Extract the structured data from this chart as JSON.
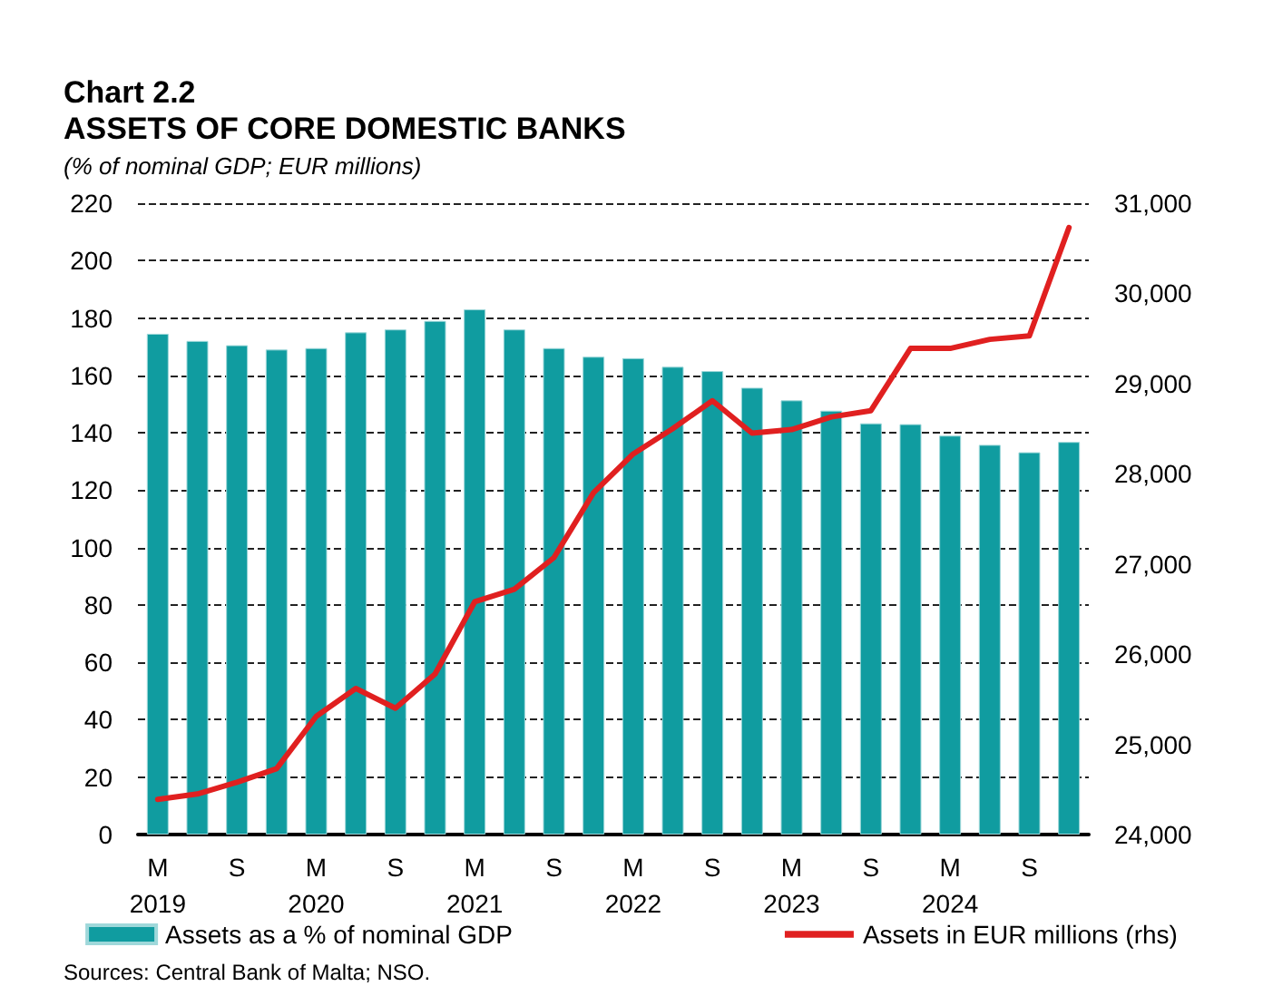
{
  "chart_data": {
    "type": "bar",
    "title": "Chart 2.2\nASSETS OF CORE DOMESTIC BANKS",
    "subtitle": "(% of nominal GDP; EUR millions)",
    "categories": [
      "M\n2019",
      null,
      "S",
      null,
      "M\n2020",
      null,
      "S",
      null,
      "M\n2021",
      null,
      "S",
      null,
      "M\n2022",
      null,
      "S",
      null,
      "M\n2023",
      null,
      "S",
      null,
      "M\n2024",
      null,
      "S",
      null
    ],
    "series": [
      {
        "name": "Assets as a % of nominal GDP",
        "color": "#109ca0",
        "values": [
          174.5,
          172,
          170.5,
          169,
          169.5,
          175,
          176,
          179,
          183,
          176,
          169.5,
          166.5,
          166,
          163,
          161.5,
          155.7,
          151.3,
          147.7,
          143.3,
          143,
          139,
          135.8,
          133.2,
          136.8
        ]
      },
      {
        "name": "Assets in EUR millions (rhs)",
        "type": "line",
        "axis": "y2",
        "color": "#e02020",
        "values": [
          24390,
          24450,
          24580,
          24730,
          25310,
          25620,
          25400,
          25780,
          26580,
          26720,
          27070,
          27790,
          28220,
          28500,
          28810,
          28450,
          28490,
          28630,
          28700,
          29390,
          29390,
          29490,
          29530,
          30730
        ]
      }
    ],
    "ylim": [
      0,
      220
    ],
    "yticks": [
      0,
      20,
      40,
      60,
      80,
      100,
      120,
      140,
      160,
      180,
      200,
      220
    ],
    "y2lim": [
      24000,
      31000
    ],
    "y2ticks": [
      {
        "value": 24000,
        "label": "24,000"
      },
      {
        "value": 25000,
        "label": "25,000"
      },
      {
        "value": 26000,
        "label": "26,000"
      },
      {
        "value": 27000,
        "label": "27,000"
      },
      {
        "value": 28000,
        "label": "28,000"
      },
      {
        "value": 29000,
        "label": "29,000"
      },
      {
        "value": 30000,
        "label": "30,000"
      },
      {
        "value": 31000,
        "label": "31,000"
      }
    ],
    "grid": "y",
    "legend": "bottom",
    "marker": "none",
    "line_style": "solid",
    "annotations": [
      "Sources: Central Bank of Malta; NSO."
    ]
  }
}
